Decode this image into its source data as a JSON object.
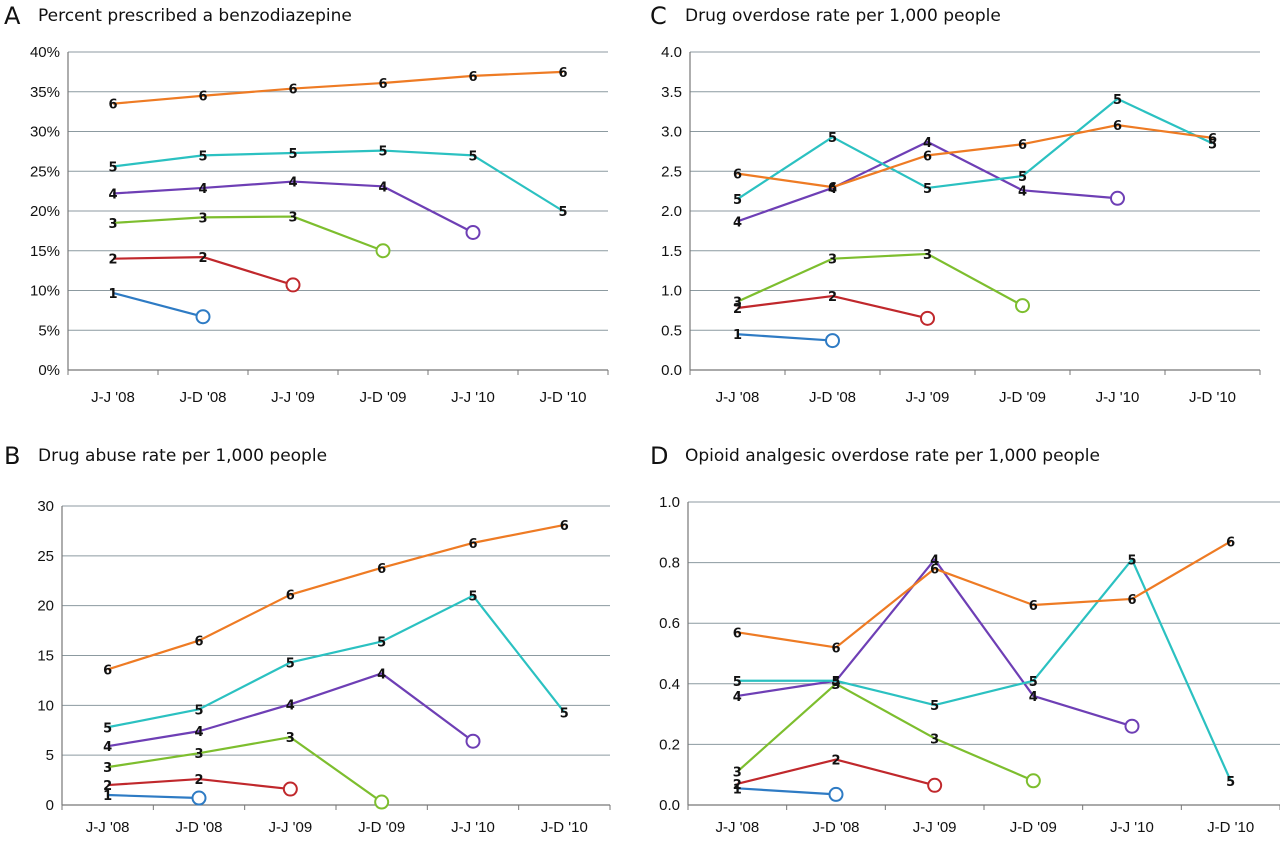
{
  "chart_data": [
    {
      "id": "A",
      "type": "line",
      "letter": "A",
      "title": "Percent prescribed a benzodiazepine",
      "categories": [
        "J-J '08",
        "J-D '08",
        "J-J '09",
        "J-D '09",
        "J-J '10",
        "J-D '10"
      ],
      "yticks": [
        "0%",
        "5%",
        "10%",
        "15%",
        "20%",
        "25%",
        "30%",
        "35%",
        "40%"
      ],
      "ylim": [
        0,
        40
      ],
      "grid": true,
      "series": [
        {
          "label": "1",
          "color": "#2E7BC4",
          "values": [
            9.7,
            6.7,
            null,
            null,
            null,
            null
          ]
        },
        {
          "label": "2",
          "color": "#C0282C",
          "values": [
            14.0,
            14.2,
            10.7,
            null,
            null,
            null
          ]
        },
        {
          "label": "3",
          "color": "#7DBE2E",
          "values": [
            18.5,
            19.2,
            19.3,
            15.0,
            null,
            null
          ]
        },
        {
          "label": "4",
          "color": "#6E3FB5",
          "values": [
            22.2,
            22.9,
            23.7,
            23.1,
            17.3,
            null
          ]
        },
        {
          "label": "5",
          "color": "#2BC1C1",
          "values": [
            25.6,
            27.0,
            27.3,
            27.6,
            27.0,
            20.0
          ]
        },
        {
          "label": "6",
          "color": "#EE7B24",
          "values": [
            33.5,
            34.5,
            35.4,
            36.1,
            37.0,
            37.5
          ]
        }
      ]
    },
    {
      "id": "C",
      "type": "line",
      "letter": "C",
      "title": "Drug overdose rate per 1,000 people",
      "categories": [
        "J-J '08",
        "J-D '08",
        "J-J '09",
        "J-D '09",
        "J-J '10",
        "J-D '10"
      ],
      "yticks": [
        "0.0",
        "0.5",
        "1.0",
        "1.5",
        "2.0",
        "2.5",
        "3.0",
        "3.5",
        "4.0"
      ],
      "ylim": [
        0,
        4
      ],
      "grid": true,
      "series": [
        {
          "label": "1",
          "color": "#2E7BC4",
          "values": [
            0.45,
            0.37,
            null,
            null,
            null,
            null
          ]
        },
        {
          "label": "2",
          "color": "#C0282C",
          "values": [
            0.78,
            0.93,
            0.65,
            null,
            null,
            null
          ]
        },
        {
          "label": "3",
          "color": "#7DBE2E",
          "values": [
            0.86,
            1.4,
            1.46,
            0.81,
            null,
            null
          ]
        },
        {
          "label": "4",
          "color": "#6E3FB5",
          "values": [
            1.87,
            2.29,
            2.87,
            2.26,
            2.16,
            null
          ]
        },
        {
          "label": "5",
          "color": "#2BC1C1",
          "values": [
            2.15,
            2.93,
            2.29,
            2.44,
            3.41,
            2.85
          ]
        },
        {
          "label": "6",
          "color": "#EE7B24",
          "values": [
            2.47,
            2.3,
            2.7,
            2.84,
            3.08,
            2.92
          ]
        }
      ]
    },
    {
      "id": "B",
      "type": "line",
      "letter": "B",
      "title": "Drug abuse rate per 1,000 people",
      "categories": [
        "J-J '08",
        "J-D '08",
        "J-J '09",
        "J-D '09",
        "J-J '10",
        "J-D '10"
      ],
      "yticks": [
        "0",
        "5",
        "10",
        "15",
        "20",
        "25",
        "30"
      ],
      "ylim": [
        0,
        30
      ],
      "grid": true,
      "series": [
        {
          "label": "1",
          "color": "#2E7BC4",
          "values": [
            1.0,
            0.7,
            null,
            null,
            null,
            null
          ]
        },
        {
          "label": "2",
          "color": "#C0282C",
          "values": [
            2.0,
            2.6,
            1.6,
            null,
            null,
            null
          ]
        },
        {
          "label": "3",
          "color": "#7DBE2E",
          "values": [
            3.8,
            5.2,
            6.8,
            0.3,
            null,
            null
          ]
        },
        {
          "label": "4",
          "color": "#6E3FB5",
          "values": [
            5.9,
            7.4,
            10.1,
            13.2,
            6.4,
            null
          ]
        },
        {
          "label": "5",
          "color": "#2BC1C1",
          "values": [
            7.8,
            9.6,
            14.3,
            16.4,
            21.0,
            9.3
          ]
        },
        {
          "label": "6",
          "color": "#EE7B24",
          "values": [
            13.6,
            16.5,
            21.1,
            23.8,
            26.3,
            28.1
          ]
        }
      ]
    },
    {
      "id": "D",
      "type": "line",
      "letter": "D",
      "title": "Opioid analgesic overdose rate per 1,000 people",
      "categories": [
        "J-J '08",
        "J-D '08",
        "J-J '09",
        "J-D '09",
        "J-J '10",
        "J-D '10"
      ],
      "yticks": [
        "0.0",
        "0.2",
        "0.4",
        "0.6",
        "0.8",
        "1.0"
      ],
      "ylim": [
        0,
        1.0
      ],
      "grid": true,
      "series": [
        {
          "label": "1",
          "color": "#2E7BC4",
          "values": [
            0.055,
            0.035,
            null,
            null,
            null,
            null
          ]
        },
        {
          "label": "2",
          "color": "#C0282C",
          "values": [
            0.07,
            0.15,
            0.065,
            null,
            null,
            null
          ]
        },
        {
          "label": "3",
          "color": "#7DBE2E",
          "values": [
            0.11,
            0.4,
            0.22,
            0.08,
            null,
            null
          ]
        },
        {
          "label": "4",
          "color": "#6E3FB5",
          "values": [
            0.36,
            0.41,
            0.81,
            0.36,
            0.26,
            null
          ]
        },
        {
          "label": "5",
          "color": "#2BC1C1",
          "values": [
            0.41,
            0.41,
            0.33,
            0.41,
            0.81,
            0.08
          ]
        },
        {
          "label": "6",
          "color": "#EE7B24",
          "values": [
            0.57,
            0.52,
            0.78,
            0.66,
            0.68,
            0.87
          ]
        }
      ]
    }
  ]
}
